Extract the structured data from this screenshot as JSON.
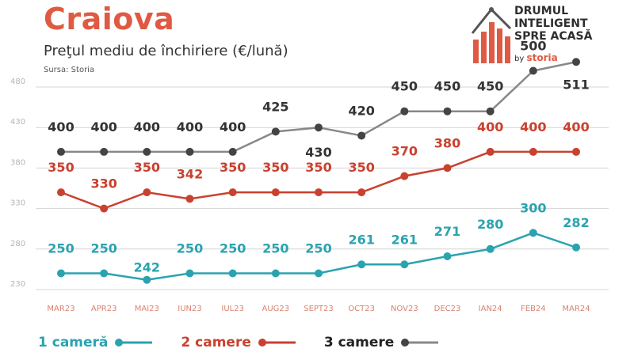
{
  "header": {
    "title": "Craiova",
    "subtitle": "Preţul mediu de închiriere (€/lună)",
    "source": "Sursa: Storia"
  },
  "logo": {
    "line1": "DRUMUL",
    "line2": "INTELIGENT",
    "line3": "SPRE ACASĂ",
    "by": "by",
    "brand": "storia"
  },
  "colors": {
    "accent": "#e05a43",
    "series1": "#2aa3b0",
    "series2": "#c9412f",
    "series3": "#444444",
    "line3": "#888888",
    "grid": "#d4d4d4",
    "tick": "#d9826f"
  },
  "chart_data": {
    "type": "line",
    "title": "Preţul mediu de închiriere (€/lună)",
    "categories": [
      "MAR23",
      "APR23",
      "MAI23",
      "IUN23",
      "IUL23",
      "AUG23",
      "SEPT23",
      "OCT23",
      "NOV23",
      "DEC23",
      "IAN24",
      "FEB24",
      "MAR24"
    ],
    "yticks": [
      230,
      280,
      330,
      380,
      430,
      480
    ],
    "ylim": [
      230,
      495
    ],
    "grid": true,
    "legend_position": "bottom-left",
    "series": [
      {
        "name": "1 cameră",
        "values": [
          250,
          250,
          242,
          250,
          250,
          250,
          250,
          261,
          261,
          271,
          280,
          300,
          282
        ]
      },
      {
        "name": "2 camere",
        "values": [
          350,
          330,
          350,
          342,
          350,
          350,
          350,
          350,
          370,
          380,
          400,
          400,
          400
        ]
      },
      {
        "name": "3 camere",
        "values": [
          400,
          400,
          400,
          400,
          400,
          425,
          430,
          420,
          450,
          450,
          450,
          500,
          511
        ]
      }
    ]
  }
}
